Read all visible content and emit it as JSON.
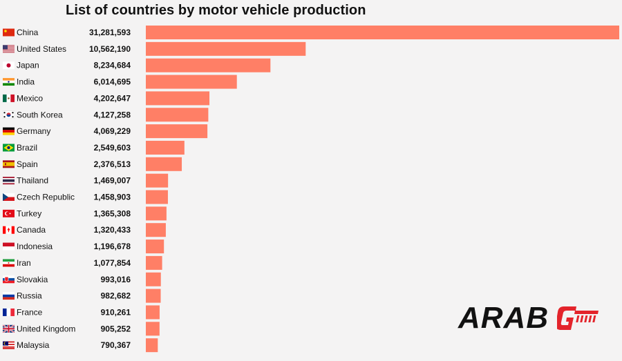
{
  "chart_data": {
    "type": "bar",
    "orientation": "horizontal",
    "title": "List of countries by motor vehicle production",
    "categories": [
      "China",
      "United States",
      "Japan",
      "India",
      "Mexico",
      "South Korea",
      "Germany",
      "Brazil",
      "Spain",
      "Thailand",
      "Czech Republic",
      "Turkey",
      "Canada",
      "Indonesia",
      "Iran",
      "Slovakia",
      "Russia",
      "France",
      "United Kingdom",
      "Malaysia"
    ],
    "values": [
      31281593,
      10562190,
      8234684,
      6014695,
      4202647,
      4127258,
      4069229,
      2549603,
      2376513,
      1469007,
      1458903,
      1365308,
      1320433,
      1196678,
      1077854,
      993016,
      982682,
      910261,
      905252,
      790367
    ],
    "value_labels": [
      "31,281,593",
      "10,562,190",
      "8,234,684",
      "6,014,695",
      "4,202,647",
      "4,127,258",
      "4,069,229",
      "2,549,603",
      "2,376,513",
      "1,469,007",
      "1,458,903",
      "1,365,308",
      "1,320,433",
      "1,196,678",
      "1,077,854",
      "993,016",
      "982,682",
      "910,261",
      "905,252",
      "790,367"
    ],
    "flags": [
      "china-flag-icon",
      "usa-flag-icon",
      "japan-flag-icon",
      "india-flag-icon",
      "mexico-flag-icon",
      "south-korea-flag-icon",
      "germany-flag-icon",
      "brazil-flag-icon",
      "spain-flag-icon",
      "thailand-flag-icon",
      "czech-flag-icon",
      "turkey-flag-icon",
      "canada-flag-icon",
      "indonesia-flag-icon",
      "iran-flag-icon",
      "slovakia-flag-icon",
      "russia-flag-icon",
      "france-flag-icon",
      "uk-flag-icon",
      "malaysia-flag-icon"
    ],
    "bar_color": "#ff7f66",
    "grid": false,
    "legend": "none"
  },
  "logo": {
    "text": "ARAB",
    "accent_color": "#e3242b"
  }
}
